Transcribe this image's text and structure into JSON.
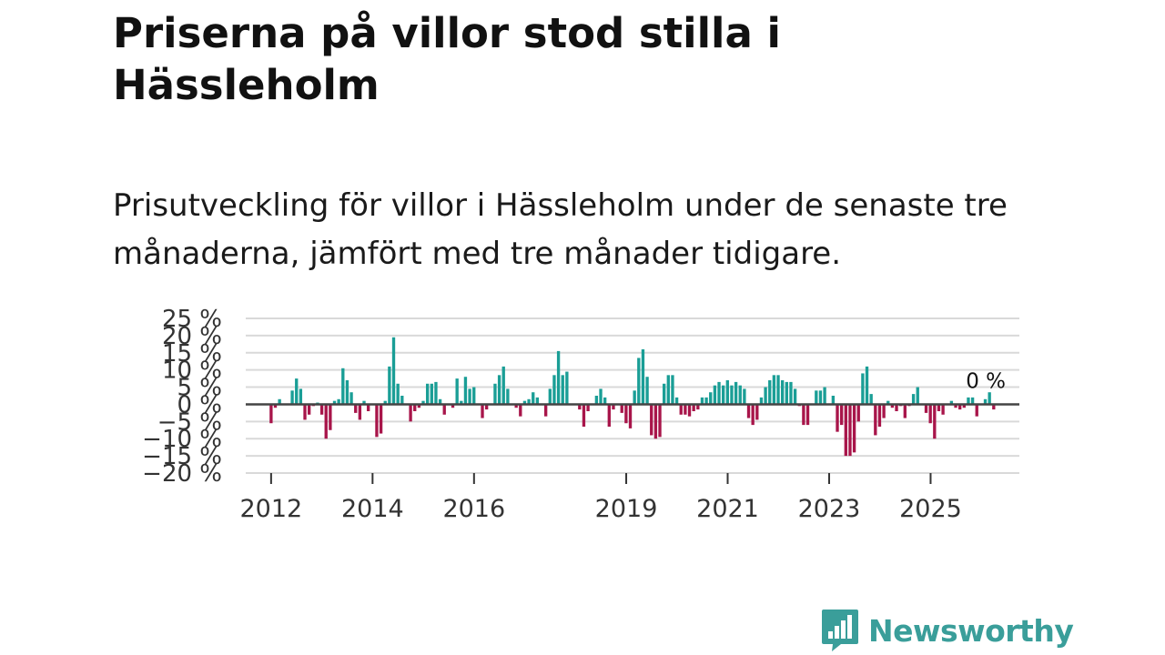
{
  "title": "Priserna på villor stod stilla i Hässleholm",
  "subtitle": "Prisutveckling för villor i Hässleholm under de senaste tre månaderna, jämfört med tre månader tidigare.",
  "colors": {
    "positive": "#1a9e96",
    "negative": "#a8154a",
    "zero_line": "#444444",
    "grid": "#d9d9d9",
    "brand": "#3a9e9a"
  },
  "brand": {
    "name": "Newsworthy",
    "icon": "newsworthy-logo-icon"
  },
  "chart_data": {
    "type": "bar",
    "title": "Priserna på villor stod stilla i Hässleholm",
    "xlabel": "",
    "ylabel": "",
    "ylim": [
      -20,
      25
    ],
    "y_ticks": [
      25,
      20,
      15,
      10,
      5,
      0,
      -5,
      -10,
      -15,
      -20
    ],
    "y_tick_labels": [
      "25 %",
      "20 %",
      "15 %",
      "10 %",
      "5 %",
      "0 %",
      "−5 %",
      "−10 %",
      "−15 %",
      "−20 %"
    ],
    "x_range": [
      2011.5,
      2026.75
    ],
    "x_ticks": [
      2012,
      2014,
      2016,
      2019,
      2021,
      2023,
      2025
    ],
    "x_tick_labels": [
      "2012",
      "2014",
      "2016",
      "2019",
      "2021",
      "2023",
      "2025"
    ],
    "annotation": {
      "label": "0 %",
      "year": 2025.55,
      "value": 0
    },
    "start_year": 2012.0,
    "step_years": 0.0833,
    "values": [
      -5.5,
      -1,
      1.5,
      0,
      0,
      4,
      7.5,
      4.5,
      -4.5,
      -3,
      -0.5,
      0.5,
      -3,
      -10,
      -7.5,
      1,
      1.5,
      10.5,
      7,
      3.5,
      -2.5,
      -4.5,
      1,
      -2,
      0,
      -9.5,
      -8.5,
      1,
      11,
      19.5,
      6,
      2.5,
      0,
      -5,
      -2,
      -1,
      1,
      6,
      6,
      6.5,
      1.5,
      -3,
      0,
      -1,
      7.5,
      1,
      8,
      4.5,
      5,
      0,
      -4,
      -1.5,
      0,
      6,
      8.5,
      11,
      4.5,
      0,
      -1,
      -3.5,
      1,
      1.5,
      3.5,
      2,
      0,
      -3.5,
      4.5,
      8.5,
      15.5,
      8.5,
      9.5,
      0,
      0,
      -1.5,
      -6.5,
      -2,
      0,
      2.5,
      4.5,
      2,
      -6.5,
      -1.5,
      0,
      -2.5,
      -5.5,
      -7,
      4,
      13.5,
      16,
      8,
      -9,
      -10,
      -9.5,
      6,
      8.5,
      8.5,
      2,
      -3,
      -3,
      -3.5,
      -2,
      -1.5,
      2,
      2,
      3.5,
      5.5,
      6.5,
      5.5,
      7,
      5.5,
      6.5,
      5.5,
      4.5,
      -4,
      -6,
      -4.5,
      2,
      5,
      7,
      8.5,
      8.5,
      7,
      6.5,
      6.5,
      4.5,
      -0.5,
      -6,
      -6,
      0,
      4,
      4,
      5,
      0,
      2.5,
      -8,
      -6,
      -15,
      -15,
      -14,
      -5,
      9,
      11,
      3,
      -9,
      -6.5,
      -4,
      1,
      -1,
      -2,
      -0.5,
      -4,
      -0.5,
      3,
      5,
      0,
      -2.5,
      -5.5,
      -10,
      -2,
      -3,
      0,
      1,
      -1,
      -1.5,
      -1,
      2,
      2,
      -3.5,
      0,
      1.5,
      3.5,
      -1.5
    ]
  }
}
